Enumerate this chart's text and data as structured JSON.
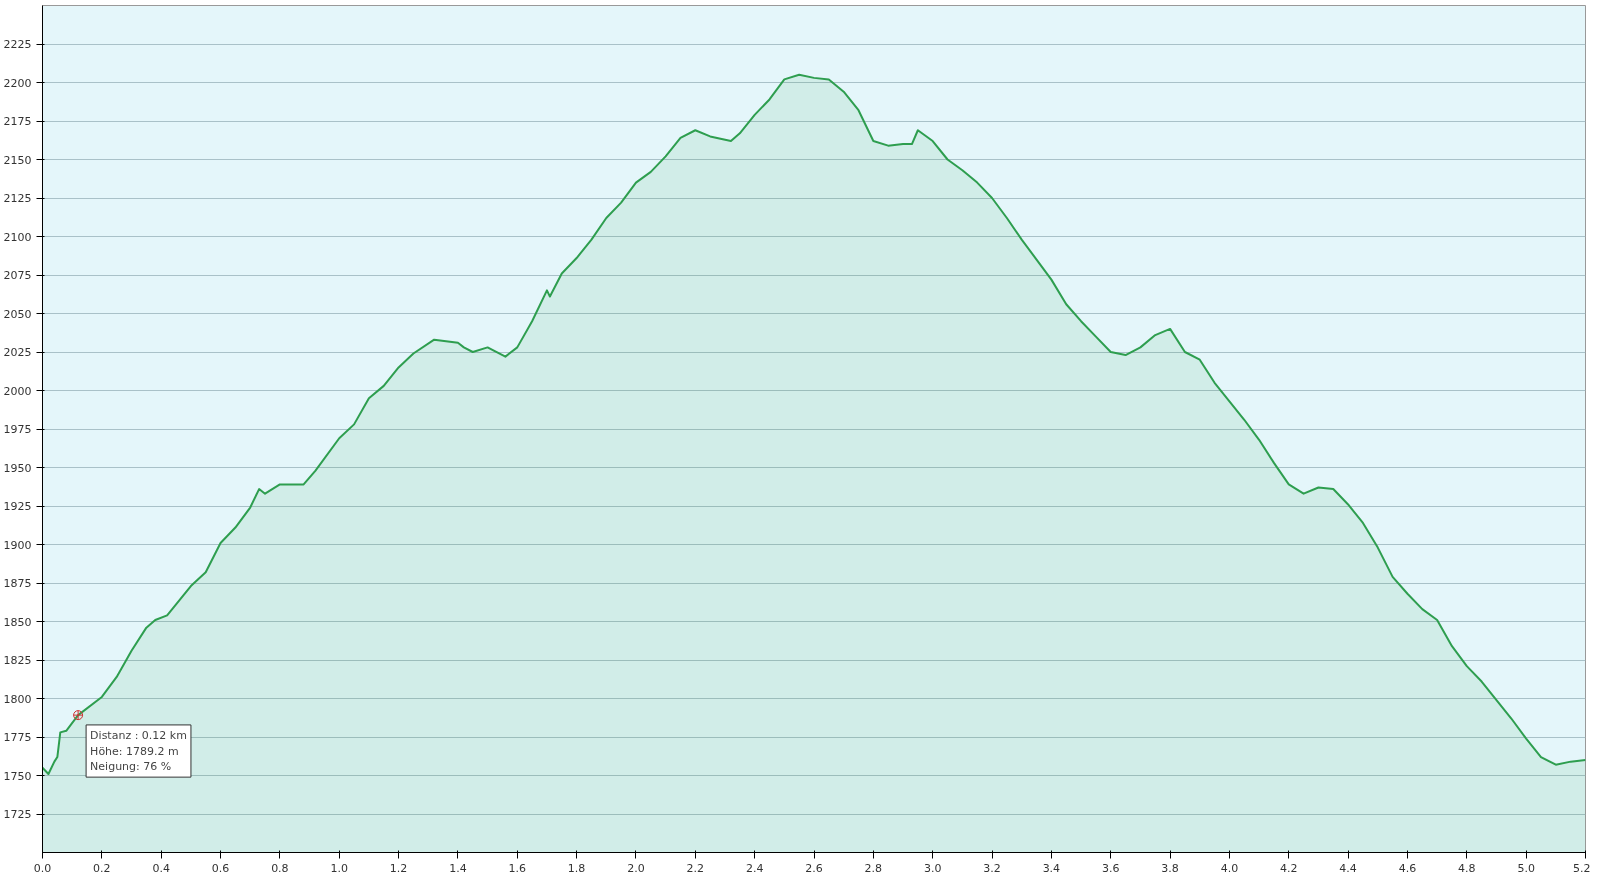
{
  "chart_data": {
    "type": "area",
    "x": [
      0.0,
      0.02,
      0.04,
      0.05,
      0.06,
      0.08,
      0.12,
      0.2,
      0.25,
      0.3,
      0.35,
      0.38,
      0.42,
      0.5,
      0.55,
      0.6,
      0.65,
      0.7,
      0.73,
      0.75,
      0.8,
      0.88,
      0.92,
      1.0,
      1.05,
      1.1,
      1.15,
      1.2,
      1.25,
      1.32,
      1.4,
      1.42,
      1.45,
      1.5,
      1.56,
      1.6,
      1.65,
      1.7,
      1.71,
      1.75,
      1.8,
      1.85,
      1.9,
      1.95,
      2.0,
      2.05,
      2.1,
      2.15,
      2.2,
      2.25,
      2.32,
      2.35,
      2.4,
      2.45,
      2.5,
      2.55,
      2.6,
      2.65,
      2.7,
      2.75,
      2.8,
      2.85,
      2.9,
      2.93,
      2.95,
      3.0,
      3.05,
      3.1,
      3.15,
      3.2,
      3.25,
      3.3,
      3.35,
      3.4,
      3.45,
      3.5,
      3.55,
      3.6,
      3.65,
      3.7,
      3.75,
      3.8,
      3.85,
      3.9,
      3.95,
      4.0,
      4.05,
      4.1,
      4.15,
      4.2,
      4.25,
      4.3,
      4.35,
      4.4,
      4.45,
      4.5,
      4.55,
      4.6,
      4.65,
      4.7,
      4.75,
      4.8,
      4.85,
      4.9,
      4.95,
      5.0,
      5.05,
      5.1,
      5.15,
      5.2
    ],
    "series": [
      {
        "color": "#2e9e4f",
        "values": [
          1755,
          1751,
          1759,
          1762,
          1778,
          1779,
          1789.2,
          1801,
          1814,
          1831,
          1846,
          1851,
          1854,
          1873,
          1882,
          1901,
          1911,
          1924,
          1936,
          1933,
          1939,
          1939,
          1948,
          1969,
          1978,
          1995,
          2003,
          2015,
          2024,
          2033,
          2031,
          2028,
          2025,
          2028,
          2022,
          2028,
          2045,
          2065,
          2061,
          2076,
          2086,
          2098,
          2112,
          2122,
          2135,
          2142,
          2152,
          2164,
          2169,
          2165,
          2162,
          2167,
          2179,
          2189,
          2202,
          2205,
          2203,
          2202,
          2194,
          2182,
          2162,
          2159,
          2160,
          2160,
          2169,
          2162,
          2150,
          2143,
          2135,
          2125,
          2112,
          2098,
          2085,
          2072,
          2056,
          2045,
          2035,
          2025,
          2023,
          2028,
          2036,
          2040,
          2025,
          2020,
          2005,
          1993,
          1981,
          1968,
          1953,
          1939,
          1933,
          1937,
          1936,
          1926,
          1914,
          1898,
          1879,
          1868,
          1858,
          1851,
          1834,
          1821,
          1811,
          1799,
          1787,
          1774,
          1762,
          1757,
          1759,
          1760
        ]
      }
    ],
    "xlim": [
      0,
      5.2
    ],
    "ylim": [
      1700,
      2250
    ],
    "xticks": [
      {
        "value": 0,
        "label": "0.0"
      },
      0.2,
      0.4,
      0.6,
      0.8,
      {
        "value": 1,
        "label": "1.0"
      },
      1.2,
      1.4,
      1.6,
      1.8,
      {
        "value": 2,
        "label": "2.0"
      },
      2.2,
      2.4,
      2.6,
      2.8,
      {
        "value": 3,
        "label": "3.0"
      },
      3.2,
      3.4,
      3.6,
      3.8,
      {
        "value": 4,
        "label": "4.0"
      },
      4.2,
      4.4,
      4.6,
      4.8,
      {
        "value": 5,
        "label": "5.0"
      },
      5.2
    ],
    "yticks": [
      1725,
      1750,
      1775,
      1800,
      1825,
      1850,
      1875,
      1900,
      1925,
      1950,
      1975,
      2000,
      2025,
      2050,
      2075,
      2100,
      2125,
      2150,
      2175,
      2200,
      2225
    ],
    "grid": "y",
    "annotations": [
      {
        "text": "Distanz : 0.12 km\nHöhe: 1789.2 m\nNeigung: 76 %",
        "x": 0.12,
        "y": 1789.2
      }
    ]
  }
}
